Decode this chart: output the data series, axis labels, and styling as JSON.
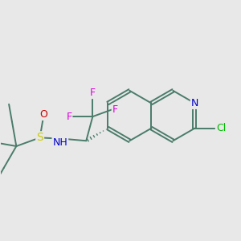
{
  "bg_color": "#e8e8e8",
  "bond_color": "#4a7c6a",
  "bond_width": 1.4,
  "atom_colors": {
    "F": "#dd00dd",
    "N": "#0000cc",
    "S": "#cccc00",
    "O": "#cc0000",
    "Cl": "#00bb00",
    "C": "#3a6a5a"
  },
  "font_size": 8.5
}
